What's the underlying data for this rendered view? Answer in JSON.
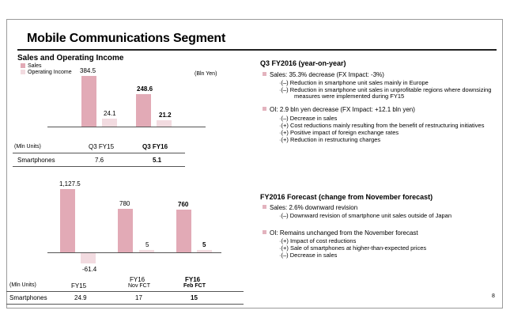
{
  "slide": {
    "title": "Mobile Communications Segment",
    "page_number": "8"
  },
  "colors": {
    "sales": "#e2aab6",
    "operating_income": "#f2dbe0"
  },
  "left": {
    "section_title": "Sales and Operating Income",
    "legend": {
      "sales": "Sales",
      "oi": "Operating Income"
    },
    "unit": "(Bln Yen)",
    "chart1": {
      "q3fy15_sales": "384.5",
      "q3fy15_oi": "24.1",
      "q3fy16_sales": "248.6",
      "q3fy16_oi": "21.2"
    },
    "table1": {
      "unit": "(Mln Units)",
      "col1": "Q3 FY15",
      "col2": "Q3 FY16",
      "row_label": "Smartphones",
      "v1": "7.6",
      "v2": "5.1"
    },
    "chart2": {
      "fy15_sales": "1,127.5",
      "fy15_oi": "-61.4",
      "nov_sales": "780",
      "nov_oi": "5",
      "feb_sales": "760",
      "feb_oi": "5"
    },
    "table2": {
      "unit": "(Mln Units)",
      "col1": "FY15",
      "col2": "FY16",
      "col2_sub": "Nov FCT",
      "col3": "FY16",
      "col3_sub": "Feb FCT",
      "row_label": "Smartphones",
      "v1": "24.9",
      "v2": "17",
      "v3": "15"
    }
  },
  "right": {
    "q3": {
      "heading_bold": "Q3 FY2016",
      "heading_rest": " (year-on-year)",
      "sales_line": "Sales: 35.3% decrease (FX Impact:  -3%)",
      "sales_sub1": "·(–)  Reduction in smartphone unit sales mainly in Europe",
      "sales_sub2": "·(–)  Reduction in smartphone unit sales in unprofitable regions where downsizing",
      "sales_sub2b": "measures were implemented during FY15",
      "oi_line": "OI: 2.9 bln yen decrease  (FX Impact:  +12.1 bln yen)",
      "oi_sub1": "·(–)  Decrease in sales",
      "oi_sub2": "·(+)  Cost reductions mainly resulting from the benefit of restructuring initiatives",
      "oi_sub3": "·(+)  Positive impact of foreign exchange rates",
      "oi_sub4": "·(+)  Reduction in restructuring charges"
    },
    "fcst": {
      "heading_bold": "FY2016 Forecast",
      "heading_rest": " (change from November forecast)",
      "sales_line": "Sales: 2.6% downward revision",
      "sales_sub1": "·(–)  Downward revision of smartphone unit sales outside of Japan",
      "oi_line": "OI: Remains unchanged from the November forecast",
      "oi_sub1": "·(+)  Impact of cost reductions",
      "oi_sub2": "·(+)  Sale of smartphones at higher-than-expected prices",
      "oi_sub3": "·(–)  Decrease in sales"
    }
  }
}
